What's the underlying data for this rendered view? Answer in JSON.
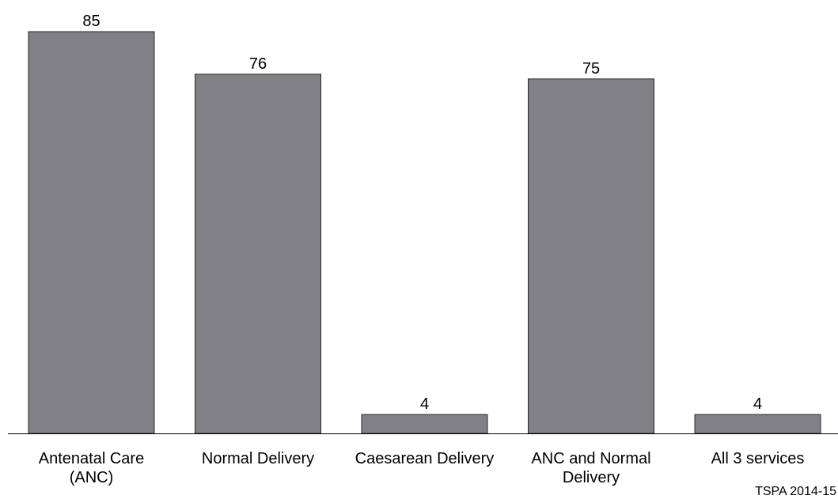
{
  "chart_data": {
    "type": "bar",
    "categories": [
      [
        "Antenatal Care",
        "(ANC)"
      ],
      [
        "Normal Delivery"
      ],
      [
        "Caesarean Delivery"
      ],
      [
        "ANC and Normal",
        "Delivery"
      ],
      [
        "All 3 services"
      ]
    ],
    "values": [
      85,
      76,
      4,
      75,
      4
    ],
    "value_labels": [
      "85",
      "76",
      "4",
      "75",
      "4"
    ],
    "title": "",
    "xlabel": "",
    "ylabel": "",
    "ylim": [
      0,
      85
    ],
    "grid": false,
    "legend": "none",
    "y_axis_visible": false
  },
  "colors": {
    "bar_fill": "#808085",
    "bar_stroke": "#2a2a2a",
    "axis_line": "#000000"
  },
  "source_note": "TSPA 2014-15"
}
